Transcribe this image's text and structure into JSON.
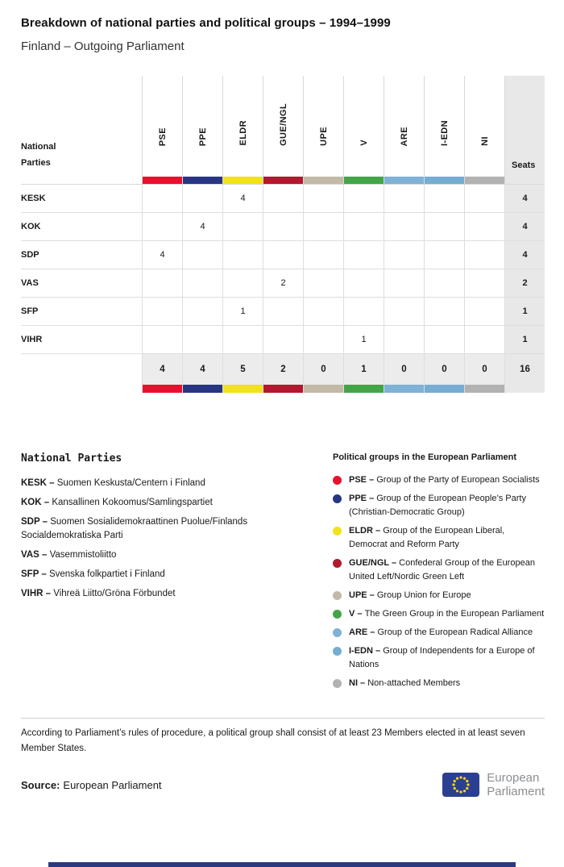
{
  "chart_data": {
    "type": "table",
    "title": "Breakdown of national parties and political groups – 1994–1999",
    "subtitle": "Finland – Outgoing Parliament",
    "corner_label": [
      "National",
      "Parties"
    ],
    "seats_header": "Seats",
    "group_columns": [
      {
        "code": "PSE",
        "color": "#e8112d"
      },
      {
        "code": "PPE",
        "color": "#283583"
      },
      {
        "code": "ELDR",
        "color": "#f2e21c"
      },
      {
        "code": "GUE/NGL",
        "color": "#b0192e"
      },
      {
        "code": "UPE",
        "color": "#c3b9a7"
      },
      {
        "code": "V",
        "color": "#43a547"
      },
      {
        "code": "ARE",
        "color": "#7fb2d6"
      },
      {
        "code": "I-EDN",
        "color": "#76add2"
      },
      {
        "code": "NI",
        "color": "#b2b2b2"
      }
    ],
    "rows": [
      {
        "party": "KESK",
        "values": [
          null,
          null,
          4,
          null,
          null,
          null,
          null,
          null,
          null
        ],
        "seats": 4
      },
      {
        "party": "KOK",
        "values": [
          null,
          4,
          null,
          null,
          null,
          null,
          null,
          null,
          null
        ],
        "seats": 4
      },
      {
        "party": "SDP",
        "values": [
          4,
          null,
          null,
          null,
          null,
          null,
          null,
          null,
          null
        ],
        "seats": 4
      },
      {
        "party": "VAS",
        "values": [
          null,
          null,
          null,
          2,
          null,
          null,
          null,
          null,
          null
        ],
        "seats": 2
      },
      {
        "party": "SFP",
        "values": [
          null,
          null,
          1,
          null,
          null,
          null,
          null,
          null,
          null
        ],
        "seats": 1
      },
      {
        "party": "VIHR",
        "values": [
          null,
          null,
          null,
          null,
          null,
          1,
          null,
          null,
          null
        ],
        "seats": 1
      }
    ],
    "totals": {
      "values": [
        4,
        4,
        5,
        2,
        0,
        1,
        0,
        0,
        0
      ],
      "seats": 16
    }
  },
  "legend_parties": {
    "title": "National Parties",
    "separator": " – ",
    "items": [
      {
        "code": "KESK",
        "name": "Suomen Keskusta/Centern i Finland"
      },
      {
        "code": "KOK",
        "name": "Kansallinen Kokoomus/Samlingspartiet"
      },
      {
        "code": "SDP",
        "name": "Suomen Sosialidemokraattinen Puolue/Finlands Socialdemokratiska Parti"
      },
      {
        "code": "VAS",
        "name": "Vasemmistoliitto"
      },
      {
        "code": "SFP",
        "name": "Svenska folkpartiet i Finland"
      },
      {
        "code": "VIHR",
        "name": "Vihreä Liitto/Gröna Förbundet"
      }
    ]
  },
  "legend_groups": {
    "title": "Political groups in the European Parliament",
    "separator": " – ",
    "items": [
      {
        "code": "PSE",
        "color": "#e8112d",
        "name": "Group of the Party of European Socialists"
      },
      {
        "code": "PPE",
        "color": "#283583",
        "name": "Group of the European People’s Party (Christian-Democratic Group)"
      },
      {
        "code": "ELDR",
        "color": "#f2e21c",
        "name": "Group of the European Liberal, Democrat and Reform Party"
      },
      {
        "code": "GUE/NGL",
        "color": "#b0192e",
        "name": "Confederal Group of the European United Left/Nordic Green Left"
      },
      {
        "code": "UPE",
        "color": "#c3b9a7",
        "name": "Group Union for Europe"
      },
      {
        "code": "V",
        "color": "#43a547",
        "name": "The Green Group in the European Parliament"
      },
      {
        "code": "ARE",
        "color": "#7fb2d6",
        "name": "Group of the European Radical Alliance"
      },
      {
        "code": "I-EDN",
        "color": "#76add2",
        "name": "Group of Independents for a Europe of Nations"
      },
      {
        "code": "NI",
        "color": "#b2b2b2",
        "name": "Non-attached Members"
      }
    ]
  },
  "footnote": "According to Parliament’s rules of procedure, a political group shall consist of at least 23 Members elected in at least seven Member States.",
  "footer": {
    "source_label": "Source:",
    "source_value": "European Parliament",
    "logo_text_line1": "European",
    "logo_text_line2": "Parliament"
  }
}
